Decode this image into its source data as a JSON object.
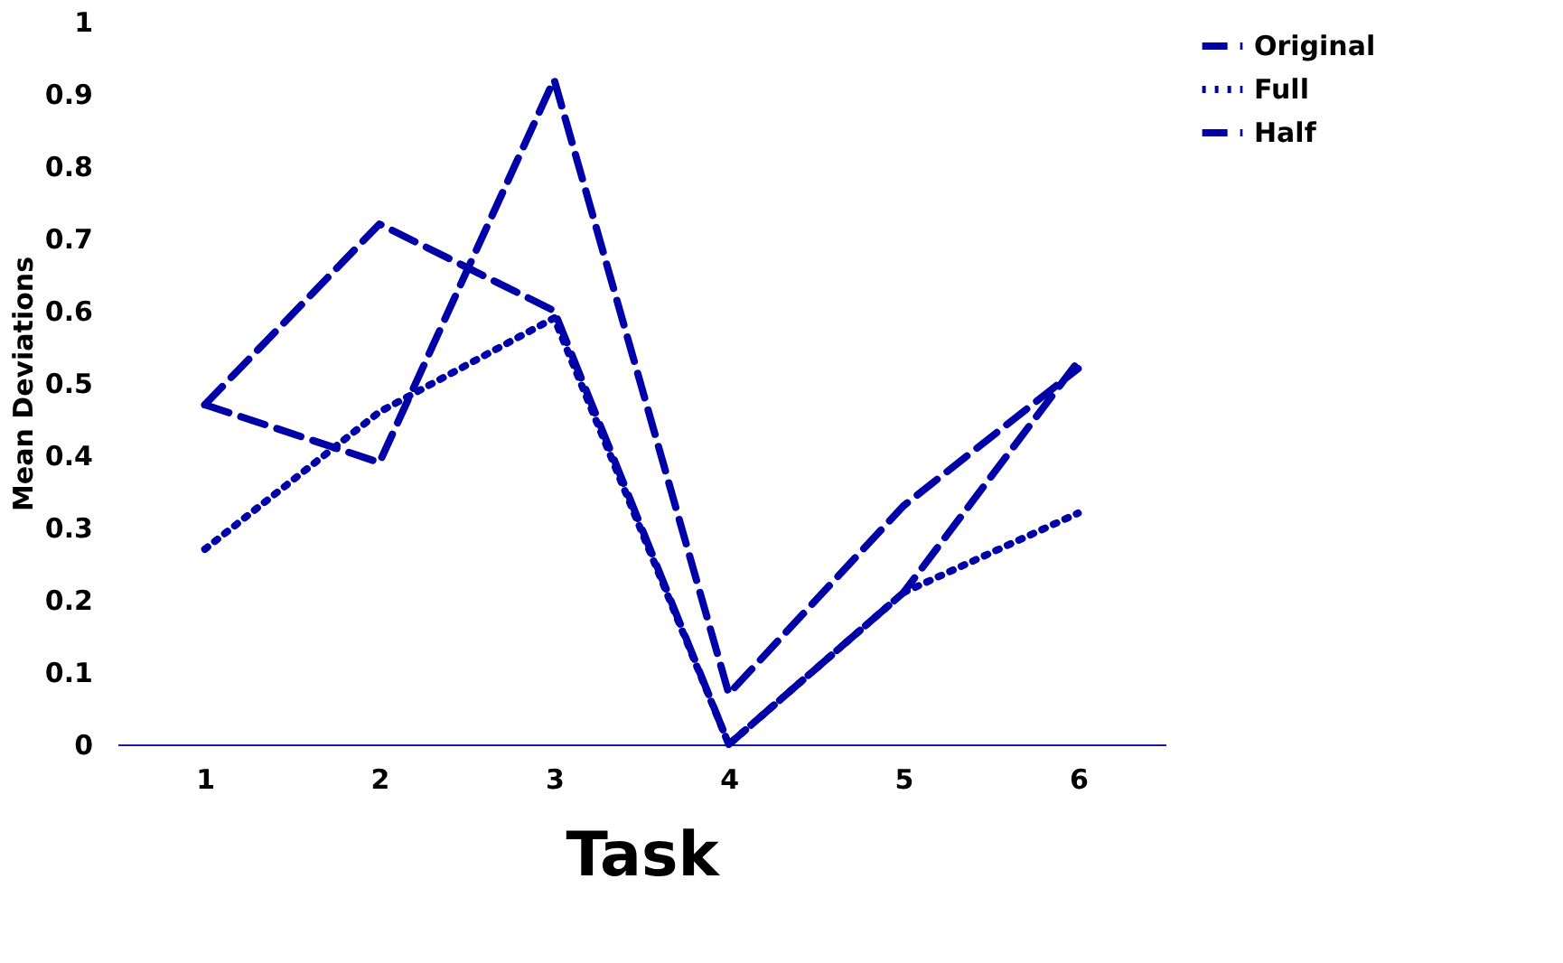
{
  "chart_data": {
    "type": "line",
    "xlabel": "Task",
    "ylabel": "Mean Deviations",
    "categories": [
      "1",
      "2",
      "3",
      "4",
      "5",
      "6"
    ],
    "series": [
      {
        "name": "Original",
        "color": "#0000a8",
        "line_style": "dashed",
        "values": [
          0.47,
          0.39,
          0.92,
          0.07,
          0.33,
          0.52
        ]
      },
      {
        "name": "Full",
        "color": "#0000a8",
        "line_style": "dotted",
        "values": [
          0.27,
          0.46,
          0.59,
          0.0,
          0.21,
          0.32
        ]
      },
      {
        "name": "Half",
        "color": "#0000a8",
        "line_style": "dashed",
        "values": [
          0.47,
          0.72,
          0.6,
          0.0,
          0.21,
          0.53
        ]
      }
    ],
    "ylim": [
      0,
      1
    ],
    "yticks": [
      0,
      0.1,
      0.2,
      0.3,
      0.4,
      0.5,
      0.6,
      0.7,
      0.8,
      0.9,
      1
    ],
    "grid": false,
    "legend": "top right",
    "marker": "none"
  }
}
